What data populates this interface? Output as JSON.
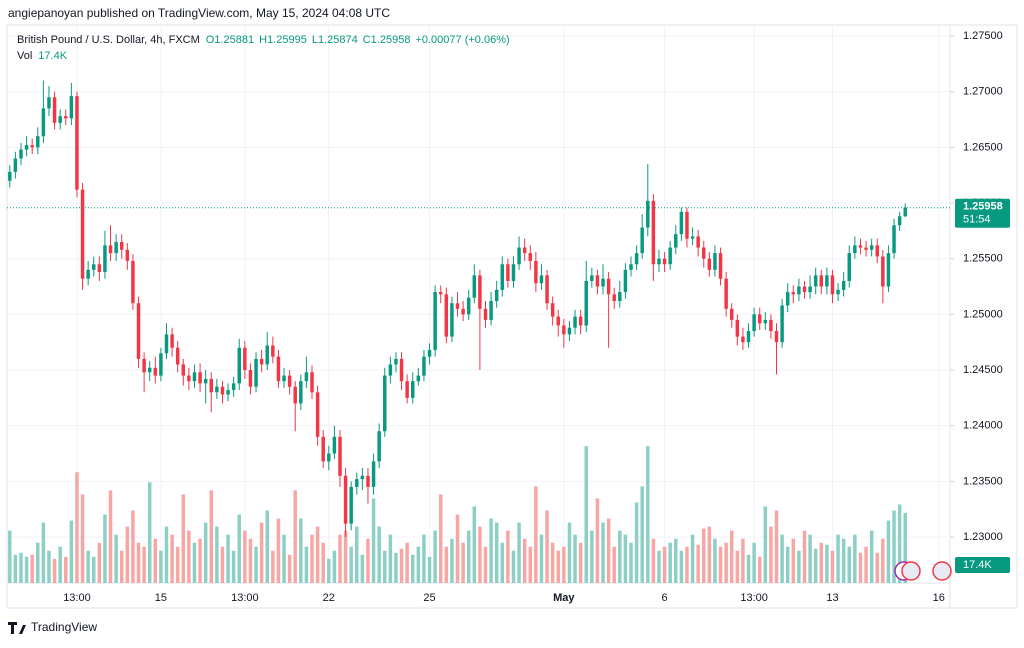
{
  "header": {
    "author_line": "angiepanoyan published on TradingView.com, May 15, 2024 04:08 UTC"
  },
  "footer": {
    "brand": "TradingView"
  },
  "chart_data": {
    "type": "candlestick",
    "symbol": "British Pound / U.S. Dollar, 4h, FXCM",
    "ohlc_legend": [
      "O1.25881",
      "H1.25995",
      "L1.25874",
      "C1.25958",
      "+0.00077 (+0.06%)"
    ],
    "volume_title": "Vol",
    "last_volume_label": "17.4K",
    "last_price_label": "1.25958",
    "countdown": "51:54",
    "up_color": "#089981",
    "down_color": "#f23645",
    "volume_up_color": "#8ccfc4",
    "volume_down_color": "#f7a6a4",
    "grid": true,
    "xlim": [
      -0.5,
      168
    ],
    "ylim": [
      1.22587,
      1.27599
    ],
    "vlim": [
      0,
      36000
    ],
    "xticks": [
      {
        "value": 12,
        "label": "13:00"
      },
      {
        "value": 27,
        "label": "15"
      },
      {
        "value": 42,
        "label": "13:00"
      },
      {
        "value": 57,
        "label": "22"
      },
      {
        "value": 75,
        "label": "25"
      },
      {
        "value": 99,
        "label": "May"
      },
      {
        "value": 117,
        "label": "6"
      },
      {
        "value": 133,
        "label": "13:00"
      },
      {
        "value": 147,
        "label": "13"
      },
      {
        "value": 166,
        "label": "16"
      }
    ],
    "bold_xticks": [
      5
    ],
    "yticks": [
      {
        "value": 1.275,
        "label": "1.27500"
      },
      {
        "value": 1.27,
        "label": "1.27000"
      },
      {
        "value": 1.265,
        "label": "1.26500"
      },
      {
        "value": 1.26,
        "label": "1.26000"
      },
      {
        "value": 1.255,
        "label": "1.25500"
      },
      {
        "value": 1.25,
        "label": "1.25000"
      },
      {
        "value": 1.245,
        "label": "1.24500"
      },
      {
        "value": 1.24,
        "label": "1.24000"
      },
      {
        "value": 1.235,
        "label": "1.23500"
      },
      {
        "value": 1.23,
        "label": "1.23000"
      }
    ],
    "open": [
      1.262,
      1.2628,
      1.264,
      1.2648,
      1.2652,
      1.265,
      1.266,
      1.2685,
      1.2695,
      1.2672,
      1.2678,
      1.2676,
      1.2696,
      1.2612,
      1.2532,
      1.254,
      1.2545,
      1.2538,
      1.2562,
      1.2555,
      1.2565,
      1.2558,
      1.2548,
      1.251,
      1.246,
      1.2448,
      1.2452,
      1.2445,
      1.2465,
      1.2482,
      1.247,
      1.2455,
      1.2445,
      1.244,
      1.2448,
      1.2438,
      1.2442,
      1.243,
      1.2435,
      1.2428,
      1.2432,
      1.2438,
      1.247,
      1.245,
      1.2435,
      1.246,
      1.2455,
      1.2472,
      1.2462,
      1.244,
      1.2445,
      1.2435,
      1.242,
      1.244,
      1.2448,
      1.243,
      1.239,
      1.2368,
      1.2375,
      1.239,
      1.2355,
      1.2312,
      1.2345,
      1.2352,
      1.2355,
      1.2345,
      1.2368,
      1.2395,
      1.2445,
      1.2455,
      1.246,
      1.244,
      1.2425,
      1.244,
      1.2445,
      1.2462,
      1.2468,
      1.252,
      1.2518,
      1.248,
      1.251,
      1.2505,
      1.25,
      1.2515,
      1.2535,
      1.2505,
      1.2495,
      1.2512,
      1.2522,
      1.2545,
      1.253,
      1.2545,
      1.256,
      1.2555,
      1.2548,
      1.2528,
      1.2535,
      1.251,
      1.2498,
      1.249,
      1.2482,
      1.2488,
      1.2498,
      1.249,
      1.253,
      1.2535,
      1.2525,
      1.2532,
      1.2518,
      1.2512,
      1.252,
      1.254,
      1.2545,
      1.2555,
      1.2578,
      1.2602,
      1.2545,
      1.255,
      1.2545,
      1.256,
      1.2572,
      1.2592,
      1.2568,
      1.257,
      1.256,
      1.255,
      1.254,
      1.2555,
      1.2532,
      1.2505,
      1.2495,
      1.248,
      1.2475,
      1.2485,
      1.25,
      1.2492,
      1.2495,
      1.2485,
      1.2475,
      1.2508,
      1.252,
      1.2518,
      1.2525,
      1.252,
      1.2525,
      1.2535,
      1.2525,
      1.2535,
      1.2518,
      1.2522,
      1.253,
      1.2555,
      1.2562,
      1.256,
      1.2558,
      1.2562,
      1.2552,
      1.2525,
      1.2555,
      1.258,
      1.25881
    ],
    "high": [
      1.2634,
      1.2646,
      1.2654,
      1.266,
      1.2658,
      1.2668,
      1.271,
      1.2705,
      1.27,
      1.2684,
      1.2684,
      1.2708,
      1.27,
      1.2618,
      1.2548,
      1.2552,
      1.2552,
      1.2575,
      1.258,
      1.2572,
      1.2572,
      1.2564,
      1.2554,
      1.2516,
      1.2466,
      1.2458,
      1.2462,
      1.247,
      1.2492,
      1.2488,
      1.2476,
      1.246,
      1.2452,
      1.2455,
      1.2456,
      1.245,
      1.2448,
      1.2442,
      1.244,
      1.2438,
      1.2444,
      1.2478,
      1.2476,
      1.2456,
      1.2466,
      1.2468,
      1.2484,
      1.248,
      1.2468,
      1.2452,
      1.245,
      1.244,
      1.2446,
      1.2462,
      1.2454,
      1.2436,
      1.2396,
      1.2382,
      1.24,
      1.2396,
      1.2362,
      1.235,
      1.2358,
      1.2362,
      1.2362,
      1.2375,
      1.2402,
      1.2452,
      1.2462,
      1.2466,
      1.2466,
      1.2446,
      1.2448,
      1.2452,
      1.2468,
      1.2474,
      1.2526,
      1.2526,
      1.2524,
      1.2516,
      1.252,
      1.2512,
      1.2522,
      1.2545,
      1.254,
      1.2512,
      1.252,
      1.253,
      1.2552,
      1.255,
      1.2552,
      1.257,
      1.2568,
      1.2562,
      1.2556,
      1.2545,
      1.254,
      1.2516,
      1.2504,
      1.2496,
      1.2494,
      1.2504,
      1.2504,
      1.2548,
      1.2542,
      1.254,
      1.2545,
      1.2538,
      1.2524,
      1.253,
      1.2546,
      1.2552,
      1.2562,
      1.259,
      1.2635,
      1.2608,
      1.2558,
      1.2556,
      1.2566,
      1.258,
      1.2596,
      1.2596,
      1.2578,
      1.2576,
      1.2566,
      1.2556,
      1.2562,
      1.256,
      1.2538,
      1.251,
      1.25,
      1.2488,
      1.2492,
      1.2506,
      1.2506,
      1.2502,
      1.25,
      1.2492,
      1.2514,
      1.2528,
      1.2526,
      1.2532,
      1.253,
      1.2535,
      1.2542,
      1.254,
      1.2542,
      1.254,
      1.2528,
      1.2538,
      1.2562,
      1.257,
      1.2568,
      1.2566,
      1.2568,
      1.2568,
      1.2558,
      1.2562,
      1.2586,
      1.2592,
      1.25995
    ],
    "low": [
      1.2614,
      1.2622,
      1.2634,
      1.2642,
      1.2644,
      1.2644,
      1.2654,
      1.2678,
      1.2666,
      1.2666,
      1.267,
      1.267,
      1.2605,
      1.2522,
      1.2526,
      1.2534,
      1.253,
      1.2532,
      1.2548,
      1.2548,
      1.255,
      1.254,
      1.2504,
      1.2452,
      1.243,
      1.244,
      1.2438,
      1.244,
      1.246,
      1.2462,
      1.2448,
      1.2436,
      1.2432,
      1.2434,
      1.243,
      1.242,
      1.2412,
      1.2424,
      1.242,
      1.2422,
      1.2426,
      1.2432,
      1.2442,
      1.2428,
      1.243,
      1.2448,
      1.245,
      1.2456,
      1.2434,
      1.2434,
      1.2428,
      1.2395,
      1.2414,
      1.2434,
      1.2424,
      1.2382,
      1.2362,
      1.236,
      1.237,
      1.2345,
      1.23,
      1.2306,
      1.2338,
      1.2342,
      1.233,
      1.2338,
      1.2362,
      1.239,
      1.2438,
      1.2448,
      1.2432,
      1.242,
      1.242,
      1.2436,
      1.244,
      1.2455,
      1.2462,
      1.251,
      1.2474,
      1.2475,
      1.2498,
      1.2494,
      1.2495,
      1.251,
      1.245,
      1.2488,
      1.249,
      1.2506,
      1.2516,
      1.2524,
      1.2524,
      1.254,
      1.2548,
      1.254,
      1.252,
      1.2522,
      1.2504,
      1.249,
      1.248,
      1.247,
      1.2476,
      1.2482,
      1.2482,
      1.2484,
      1.2524,
      1.2518,
      1.2518,
      1.247,
      1.2505,
      1.2506,
      1.2514,
      1.2534,
      1.254,
      1.255,
      1.257,
      1.253,
      1.2538,
      1.2538,
      1.254,
      1.2554,
      1.2566,
      1.256,
      1.2562,
      1.2552,
      1.2542,
      1.2534,
      1.2534,
      1.2526,
      1.2498,
      1.2488,
      1.2472,
      1.2468,
      1.247,
      1.248,
      1.2486,
      1.2486,
      1.2478,
      1.2446,
      1.247,
      1.2502,
      1.251,
      1.2512,
      1.2514,
      1.2514,
      1.2518,
      1.2518,
      1.2518,
      1.251,
      1.2512,
      1.2516,
      1.2524,
      1.255,
      1.2554,
      1.2552,
      1.2552,
      1.2546,
      1.251,
      1.252,
      1.255,
      1.2575,
      1.25874
    ],
    "close": [
      1.2628,
      1.264,
      1.2648,
      1.2652,
      1.265,
      1.266,
      1.2685,
      1.2695,
      1.2672,
      1.2678,
      1.2676,
      1.2696,
      1.2612,
      1.2532,
      1.254,
      1.2545,
      1.2538,
      1.2562,
      1.2555,
      1.2565,
      1.2558,
      1.2548,
      1.251,
      1.246,
      1.2448,
      1.2452,
      1.2445,
      1.2465,
      1.2482,
      1.247,
      1.2455,
      1.2445,
      1.244,
      1.2448,
      1.2438,
      1.2442,
      1.243,
      1.2435,
      1.2428,
      1.2432,
      1.2438,
      1.247,
      1.245,
      1.2435,
      1.246,
      1.2455,
      1.2472,
      1.2462,
      1.244,
      1.2445,
      1.2435,
      1.242,
      1.244,
      1.2448,
      1.243,
      1.239,
      1.2368,
      1.2375,
      1.239,
      1.2355,
      1.2312,
      1.2345,
      1.2352,
      1.2355,
      1.2345,
      1.2368,
      1.2395,
      1.2445,
      1.2455,
      1.246,
      1.244,
      1.2425,
      1.244,
      1.2445,
      1.2462,
      1.2468,
      1.252,
      1.2518,
      1.248,
      1.251,
      1.2505,
      1.25,
      1.2515,
      1.2535,
      1.2505,
      1.2495,
      1.2512,
      1.2522,
      1.2545,
      1.253,
      1.2545,
      1.256,
      1.2555,
      1.2548,
      1.2528,
      1.2535,
      1.251,
      1.2498,
      1.249,
      1.2482,
      1.2488,
      1.2498,
      1.249,
      1.253,
      1.2535,
      1.2525,
      1.2532,
      1.2518,
      1.2512,
      1.252,
      1.254,
      1.2545,
      1.2555,
      1.2578,
      1.2602,
      1.2545,
      1.255,
      1.2545,
      1.256,
      1.2572,
      1.2592,
      1.2568,
      1.257,
      1.256,
      1.255,
      1.254,
      1.2555,
      1.2532,
      1.2505,
      1.2495,
      1.248,
      1.2475,
      1.2485,
      1.25,
      1.2492,
      1.2495,
      1.2485,
      1.2475,
      1.2508,
      1.252,
      1.2518,
      1.2525,
      1.252,
      1.2525,
      1.2535,
      1.2525,
      1.2535,
      1.2518,
      1.2522,
      1.253,
      1.2555,
      1.2562,
      1.256,
      1.2558,
      1.2562,
      1.2552,
      1.2525,
      1.2555,
      1.258,
      1.25881,
      1.25958
    ],
    "volume": [
      13000,
      7000,
      7500,
      6500,
      7000,
      10000,
      15000,
      8000,
      6000,
      9000,
      6500,
      15500,
      27500,
      22000,
      8000,
      6500,
      10000,
      17000,
      23000,
      12000,
      8000,
      14000,
      18000,
      10000,
      9000,
      25000,
      11000,
      8000,
      14000,
      12000,
      9000,
      22000,
      13000,
      10000,
      11000,
      15000,
      23000,
      14000,
      9000,
      12000,
      8000,
      17000,
      13000,
      11000,
      9000,
      15000,
      18000,
      8000,
      16000,
      12000,
      7000,
      23000,
      16000,
      9000,
      12000,
      14000,
      10000,
      6000,
      8000,
      12000,
      13000,
      9000,
      14000,
      7000,
      11000,
      21000,
      14000,
      8000,
      12000,
      7500,
      8500,
      10000,
      7000,
      9000,
      12000,
      6500,
      13000,
      22000,
      9000,
      11000,
      17000,
      10000,
      13000,
      19000,
      14000,
      9000,
      16000,
      15000,
      10000,
      13000,
      8000,
      15000,
      11000,
      9000,
      24000,
      12000,
      18000,
      10000,
      8000,
      9000,
      15000,
      12000,
      10000,
      34000,
      13000,
      21000,
      15000,
      16000,
      9000,
      13000,
      12000,
      10000,
      20000,
      24000,
      34000,
      11000,
      8000,
      9000,
      10000,
      11000,
      8000,
      9000,
      12000,
      9500,
      13500,
      14000,
      11000,
      9000,
      10000,
      13000,
      8000,
      11000,
      7000,
      10000,
      6500,
      19000,
      14000,
      18000,
      12000,
      9000,
      11000,
      8000,
      13000,
      12000,
      8500,
      10000,
      9500,
      8000,
      12000,
      11000,
      9000,
      12000,
      7500,
      9000,
      13000,
      7500,
      11000,
      15500,
      18000,
      19500,
      17400
    ]
  }
}
